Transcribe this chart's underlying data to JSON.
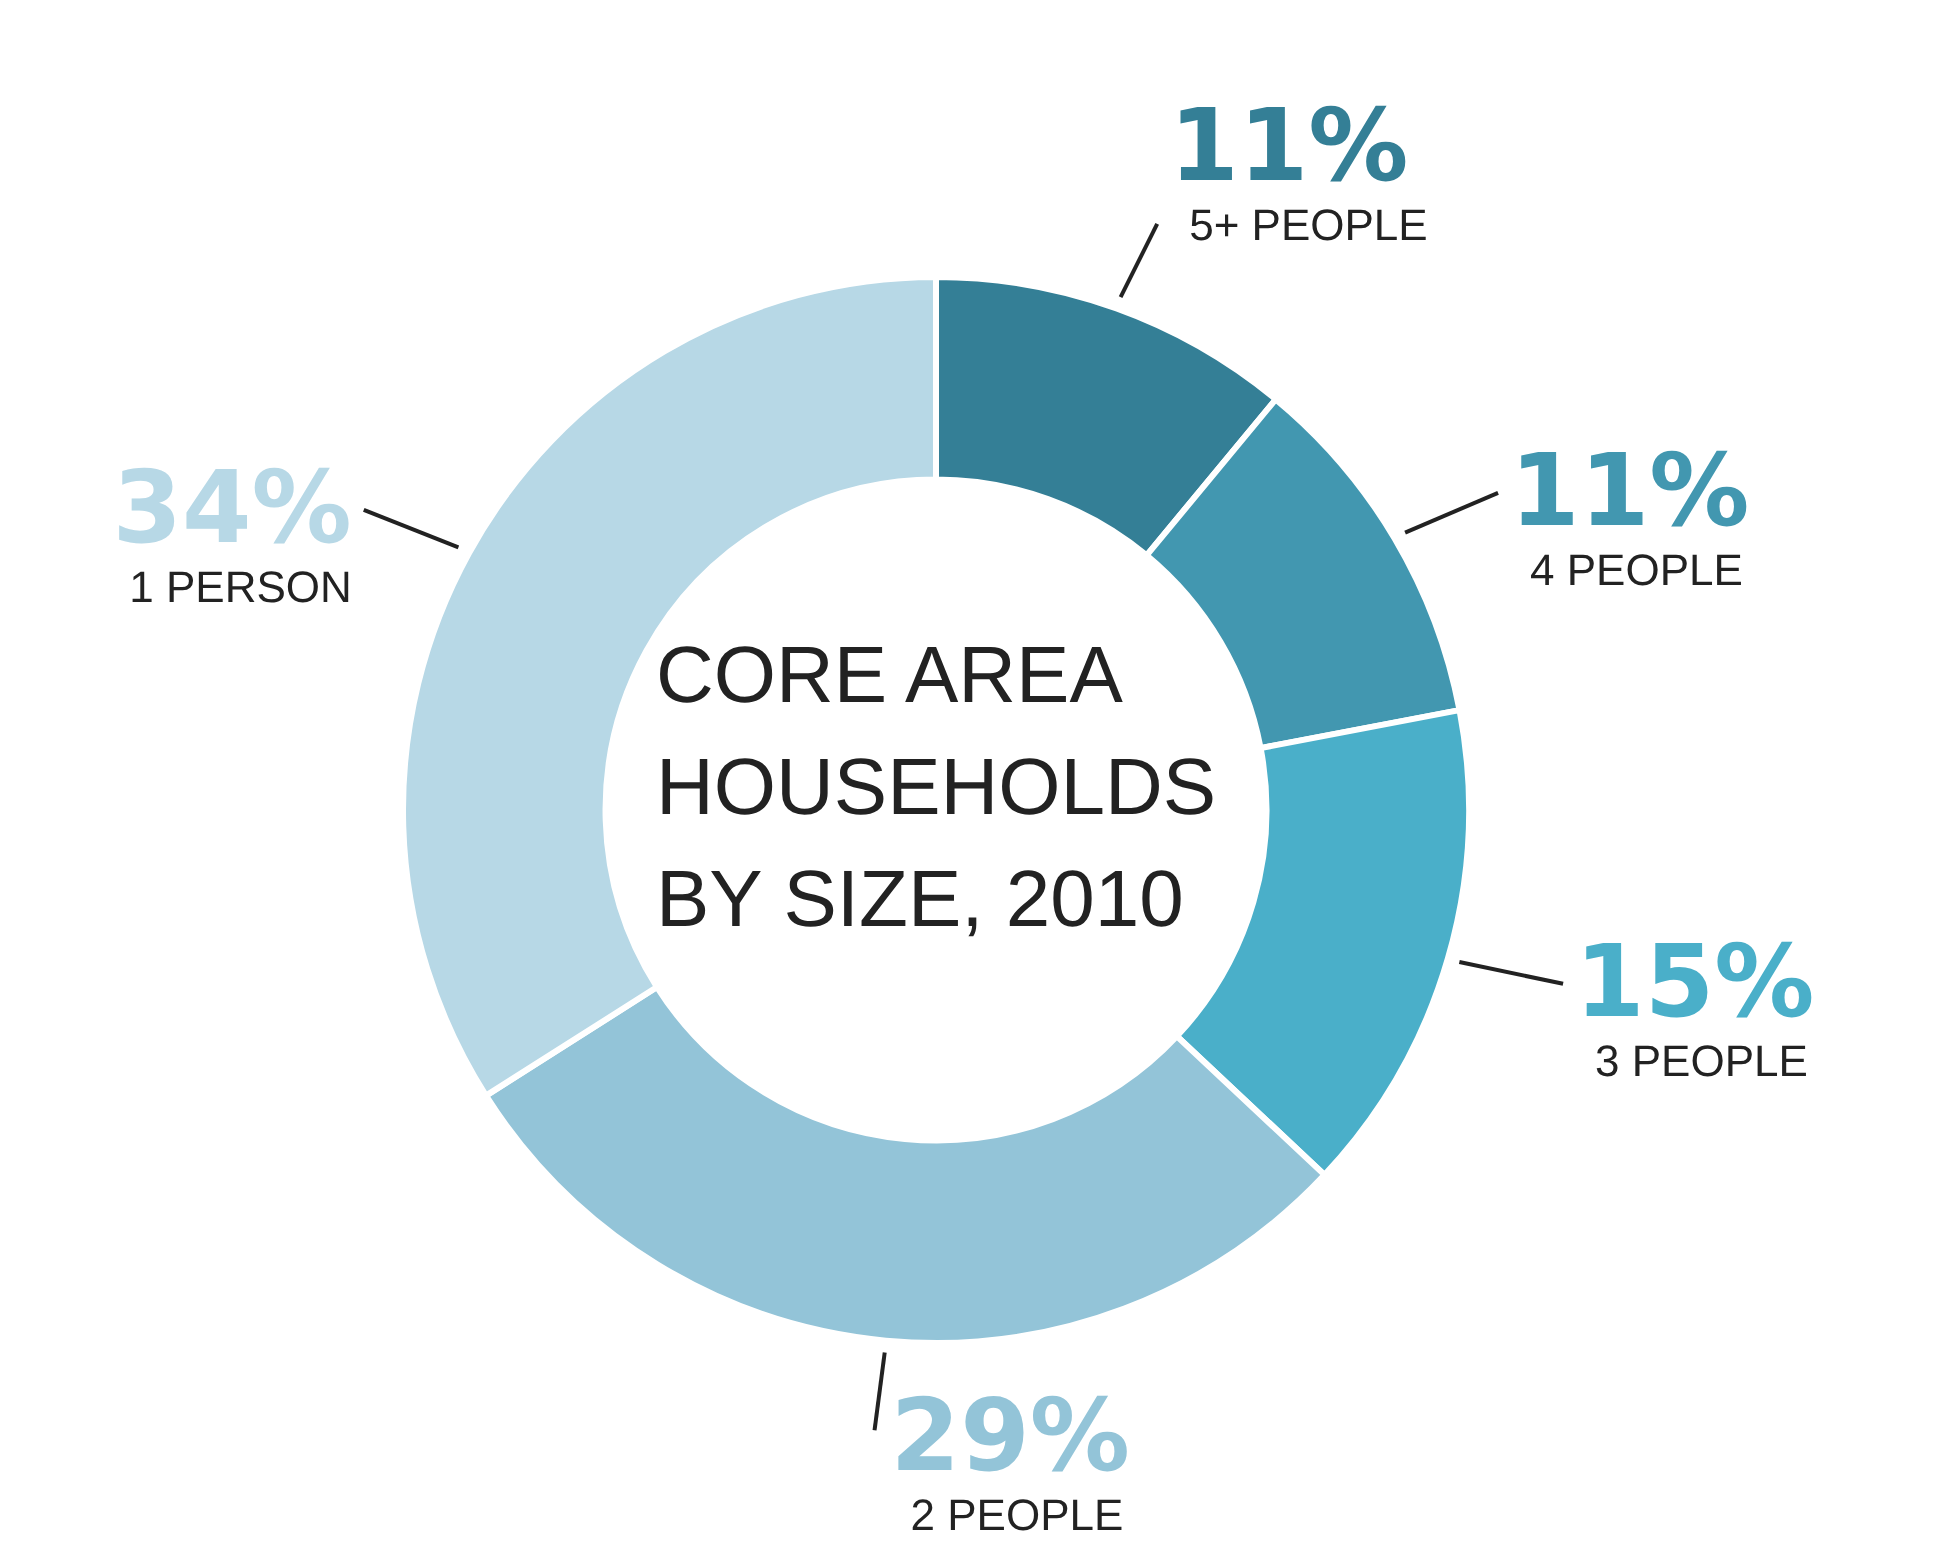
{
  "chart_data": {
    "type": "donut",
    "title": "CORE AREA HOUSEHOLDS BY SIZE, 2010",
    "categories": [
      "5+ PEOPLE",
      "4 PEOPLE",
      "3 PEOPLE",
      "2 PEOPLE",
      "1 PERSON"
    ],
    "values": [
      11,
      11,
      15,
      29,
      34
    ],
    "value_labels": [
      "11%",
      "11%",
      "15%",
      "29%",
      "34%"
    ],
    "colors": [
      "#347f96",
      "#4297b0",
      "#4aafc9",
      "#93c4d8",
      "#b7d8e6"
    ],
    "legend": false
  }
}
